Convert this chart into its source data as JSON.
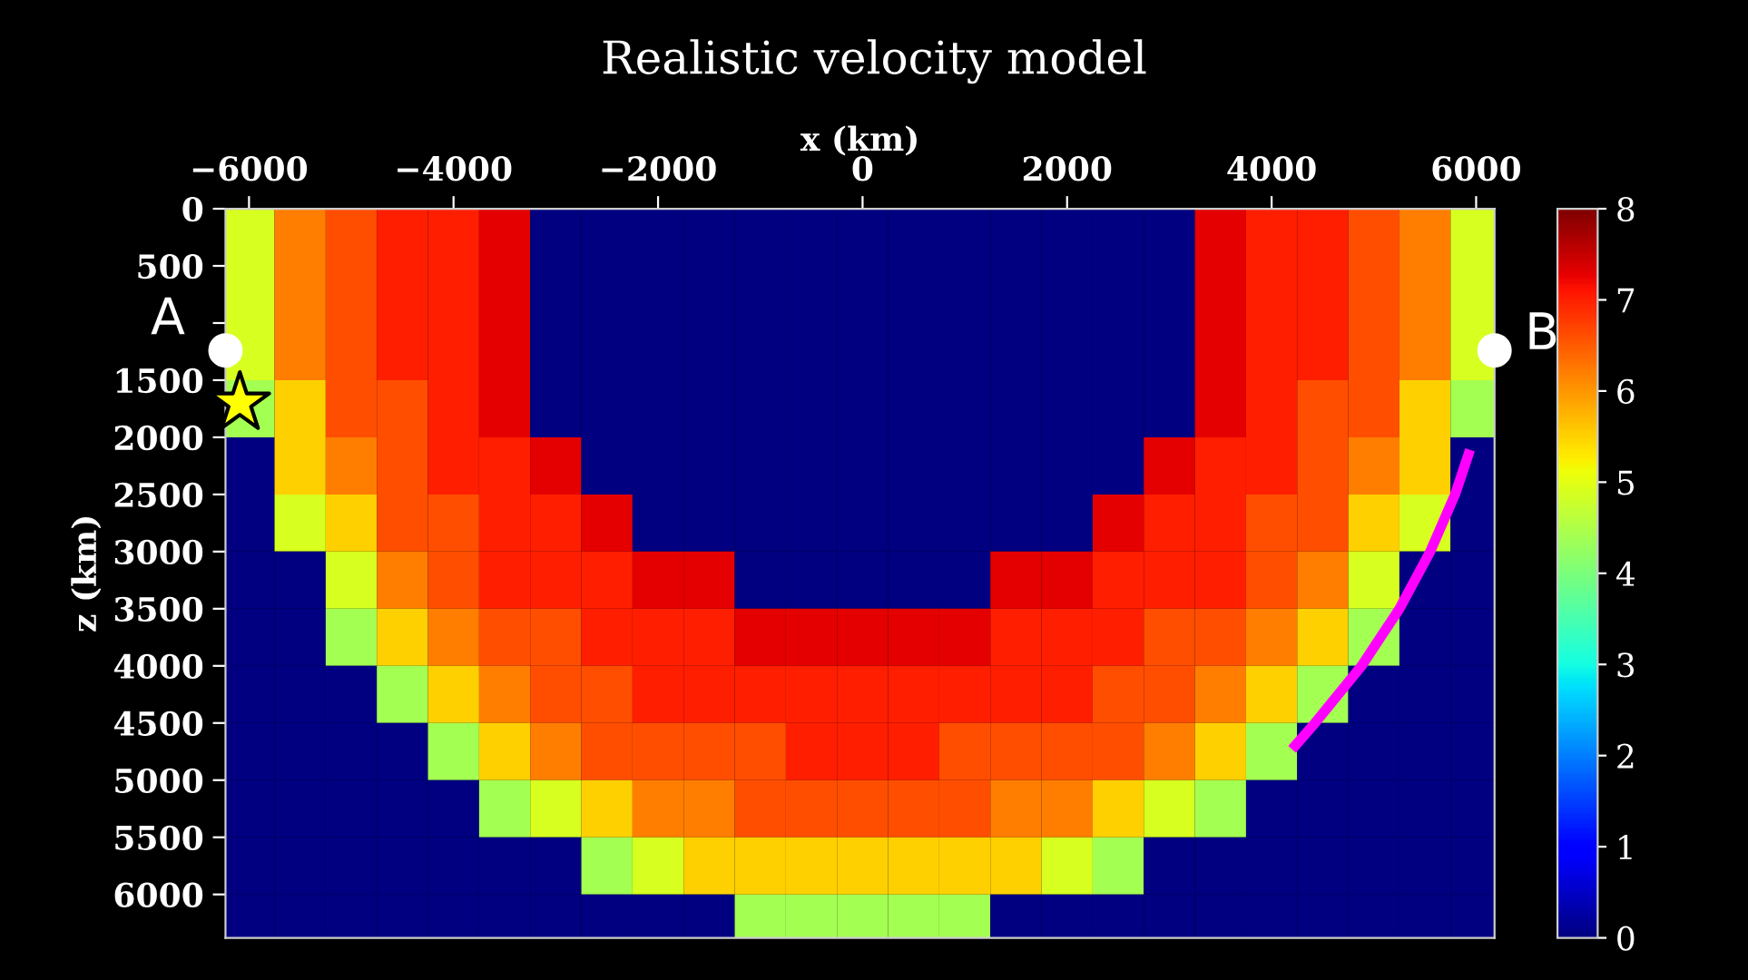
{
  "chart_data": {
    "type": "heatmap",
    "title": "Realistic velocity model",
    "xlabel": "x (km)",
    "ylabel": "z (km)",
    "x": [
      -6000,
      -5500,
      -5000,
      -4500,
      -4000,
      -3500,
      -3000,
      -2500,
      -2000,
      -1500,
      -1000,
      -500,
      0,
      500,
      1000,
      1500,
      2000,
      2500,
      3000,
      3500,
      4000,
      4500,
      5000,
      5500,
      6000
    ],
    "y": [
      250,
      750,
      1250,
      1750,
      2250,
      2750,
      3250,
      3750,
      4250,
      4750,
      5250,
      5750,
      6250
    ],
    "cells": [
      [
        4.9,
        6.2,
        6.6,
        7.0,
        7.0,
        7.3,
        0,
        0,
        0,
        0,
        0,
        0,
        0,
        0,
        0,
        0,
        0,
        0,
        0,
        7.3,
        7.0,
        7.0,
        6.6,
        6.2,
        4.9
      ],
      [
        4.9,
        6.2,
        6.6,
        7.0,
        7.0,
        7.3,
        0,
        0,
        0,
        0,
        0,
        0,
        0,
        0,
        0,
        0,
        0,
        0,
        0,
        7.3,
        7.0,
        7.0,
        6.6,
        6.2,
        4.9
      ],
      [
        4.9,
        6.2,
        6.6,
        7.0,
        7.0,
        7.3,
        0,
        0,
        0,
        0,
        0,
        0,
        0,
        0,
        0,
        0,
        0,
        0,
        0,
        7.3,
        7.0,
        7.0,
        6.6,
        6.2,
        4.9
      ],
      [
        4.4,
        5.5,
        6.6,
        6.6,
        7.0,
        7.3,
        0,
        0,
        0,
        0,
        0,
        0,
        0,
        0,
        0,
        0,
        0,
        0,
        0,
        7.3,
        7.0,
        6.6,
        6.6,
        5.5,
        4.4
      ],
      [
        0,
        5.5,
        6.2,
        6.6,
        7.0,
        7.0,
        7.3,
        0,
        0,
        0,
        0,
        0,
        0,
        0,
        0,
        0,
        0,
        0,
        7.3,
        7.0,
        7.0,
        6.6,
        6.2,
        5.5,
        0
      ],
      [
        0,
        4.9,
        5.5,
        6.6,
        6.6,
        7.0,
        7.0,
        7.3,
        0,
        0,
        0,
        0,
        0,
        0,
        0,
        0,
        0,
        7.3,
        7.0,
        7.0,
        6.6,
        6.6,
        5.5,
        4.9,
        0
      ],
      [
        0,
        0,
        4.9,
        6.2,
        6.6,
        7.0,
        7.0,
        7.0,
        7.3,
        7.3,
        0,
        0,
        0,
        0,
        0,
        7.3,
        7.3,
        7.0,
        7.0,
        7.0,
        6.6,
        6.2,
        4.9,
        0,
        0
      ],
      [
        0,
        0,
        4.4,
        5.5,
        6.2,
        6.6,
        6.6,
        7.0,
        7.0,
        7.0,
        7.3,
        7.3,
        7.3,
        7.3,
        7.3,
        7.0,
        7.0,
        7.0,
        6.6,
        6.6,
        6.2,
        5.5,
        4.4,
        0,
        0
      ],
      [
        0,
        0,
        0,
        4.4,
        5.5,
        6.2,
        6.6,
        6.6,
        7.0,
        7.0,
        7.0,
        7.0,
        7.0,
        7.0,
        7.0,
        7.0,
        7.0,
        6.6,
        6.6,
        6.2,
        5.5,
        4.4,
        0,
        0,
        0
      ],
      [
        0,
        0,
        0,
        0,
        4.4,
        5.5,
        6.2,
        6.6,
        6.6,
        6.6,
        6.6,
        7.0,
        7.0,
        7.0,
        6.6,
        6.6,
        6.6,
        6.6,
        6.2,
        5.5,
        4.4,
        0,
        0,
        0,
        0
      ],
      [
        0,
        0,
        0,
        0,
        0,
        4.4,
        4.9,
        5.5,
        6.2,
        6.2,
        6.6,
        6.6,
        6.6,
        6.6,
        6.6,
        6.2,
        6.2,
        5.5,
        4.9,
        4.4,
        0,
        0,
        0,
        0,
        0
      ],
      [
        0,
        0,
        0,
        0,
        0,
        0,
        0,
        4.4,
        4.9,
        5.5,
        5.5,
        5.5,
        5.5,
        5.5,
        5.5,
        5.5,
        4.9,
        4.4,
        0,
        0,
        0,
        0,
        0,
        0,
        0
      ],
      [
        0,
        0,
        0,
        0,
        0,
        0,
        0,
        0,
        0,
        0,
        4.4,
        4.4,
        4.4,
        4.4,
        4.4,
        0,
        0,
        0,
        0,
        0,
        0,
        0,
        0,
        0,
        0
      ]
    ],
    "clim": [
      0,
      8
    ],
    "cticks": [
      0,
      1,
      2,
      3,
      4,
      5,
      6,
      7,
      8
    ],
    "xlim": [
      -6230,
      6180
    ],
    "xticks": [
      -6000,
      -4000,
      -2000,
      0,
      2000,
      4000,
      6000
    ],
    "ylim": [
      6380,
      0
    ],
    "yticks": [
      0,
      500,
      {
        "value": 1000,
        "label": null
      },
      1500,
      2000,
      2500,
      3000,
      3500,
      4000,
      4500,
      5000,
      5500,
      6000
    ],
    "series": [
      {
        "type": "line",
        "color": "#ff00ff",
        "x": [
          5940,
          5794,
          5551,
          5250,
          4880,
          4424,
          4200
        ],
        "values": [
          2110,
          2500,
          3000,
          3500,
          4000,
          4500,
          4730
        ]
      },
      {
        "type": "scatter",
        "marker": "circle",
        "color": "#ffffff",
        "x": [
          -6230,
          6180
        ],
        "values": [
          1240,
          1240
        ]
      },
      {
        "type": "scatter",
        "marker": "star",
        "color": "#ffff00",
        "x": [
          -6090
        ],
        "values": [
          1700
        ]
      }
    ],
    "annotations": [
      {
        "text": "A",
        "x": -6230,
        "y": 1240
      },
      {
        "text": "B",
        "x": 6180,
        "y": 1240
      }
    ]
  }
}
